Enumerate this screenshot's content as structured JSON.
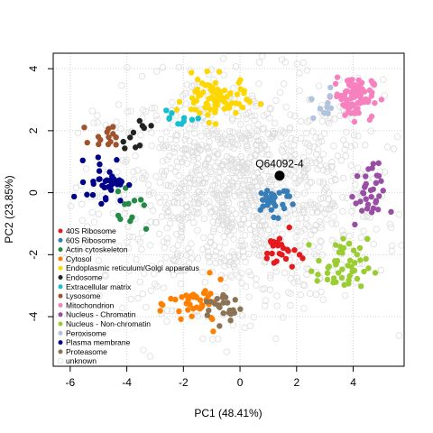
{
  "chart_data": {
    "type": "scatter",
    "title": "",
    "xlabel": "PC1 (48.41%)",
    "ylabel": "PC2 (23.85%)",
    "xlim": [
      -6.6,
      5.8
    ],
    "ylim": [
      -5.6,
      4.5
    ],
    "xticks": [
      -6,
      -4,
      -2,
      0,
      2,
      4
    ],
    "yticks": [
      -4,
      -2,
      0,
      2,
      4
    ],
    "xtick_labels": [
      "-6",
      "-4",
      "-2",
      "0",
      "2",
      "4"
    ],
    "ytick_labels": [
      "-4",
      "-2",
      "0",
      "2",
      "4"
    ],
    "grid": true,
    "legend_position": "bottom-left",
    "annotation": {
      "label": "Q64092-4",
      "x": 1.4,
      "y": 0.55
    },
    "series": [
      {
        "name": "40S Ribosome",
        "color": "#e41a1c",
        "center": [
          1.4,
          -1.9
        ],
        "spread": [
          0.3,
          0.3
        ],
        "n": 24
      },
      {
        "name": "60S Ribosome",
        "color": "#377eb8",
        "center": [
          1.2,
          -0.2
        ],
        "spread": [
          0.4,
          0.25
        ],
        "n": 30
      },
      {
        "name": "Actin cytoskeleton",
        "color": "#238b45",
        "center": [
          -3.9,
          -0.8
        ],
        "spread": [
          0.35,
          0.35
        ],
        "n": 12
      },
      {
        "name": "Cytosol",
        "color": "#ff7f00",
        "center": [
          -1.5,
          -3.6
        ],
        "spread": [
          0.5,
          0.35
        ],
        "n": 40
      },
      {
        "name": "Endoplasmic reticulum/Golgi apparatus",
        "color": "#ffd700",
        "center": [
          -0.9,
          3.0
        ],
        "spread": [
          0.55,
          0.35
        ],
        "n": 80
      },
      {
        "name": "Endosome",
        "color": "#222222",
        "center": [
          -3.8,
          1.95
        ],
        "spread": [
          0.3,
          0.25
        ],
        "n": 10
      },
      {
        "name": "Extracellular matrix",
        "color": "#17becf",
        "center": [
          -2.0,
          2.4
        ],
        "spread": [
          0.5,
          0.15
        ],
        "n": 10
      },
      {
        "name": "Lysosome",
        "color": "#a0522d",
        "center": [
          -4.6,
          1.85
        ],
        "spread": [
          0.3,
          0.2
        ],
        "n": 14
      },
      {
        "name": "Mitochondrion",
        "color": "#f781bf",
        "center": [
          4.0,
          3.1
        ],
        "spread": [
          0.35,
          0.35
        ],
        "n": 90
      },
      {
        "name": "Nucleus - Chromatin",
        "color": "#984ea3",
        "center": [
          4.5,
          -0.1
        ],
        "spread": [
          0.3,
          0.5
        ],
        "n": 34
      },
      {
        "name": "Nucleus - Non-chromatin",
        "color": "#9acd32",
        "center": [
          3.6,
          -2.4
        ],
        "spread": [
          0.45,
          0.45
        ],
        "n": 50
      },
      {
        "name": "Peroxisome",
        "color": "#b0c4de",
        "center": [
          3.0,
          2.9
        ],
        "spread": [
          0.25,
          0.35
        ],
        "n": 10
      },
      {
        "name": "Plasma membrane",
        "color": "#00008b",
        "center": [
          -4.7,
          0.4
        ],
        "spread": [
          0.35,
          0.35
        ],
        "n": 36
      },
      {
        "name": "Proteasome",
        "color": "#8b7355",
        "center": [
          -0.6,
          -3.7
        ],
        "spread": [
          0.35,
          0.25
        ],
        "n": 24
      },
      {
        "name": "unknown",
        "color": "#dddddd",
        "open": true,
        "center": [
          0.0,
          0.0
        ],
        "spread": [
          2.5,
          1.8
        ],
        "n": 1200
      }
    ]
  }
}
